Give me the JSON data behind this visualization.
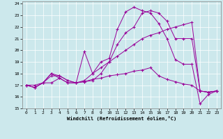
{
  "xlabel": "Windchill (Refroidissement éolien,°C)",
  "bg_color": "#cce8ec",
  "line_color": "#990099",
  "xlim": [
    -0.5,
    23.5
  ],
  "ylim": [
    15,
    24.2
  ],
  "xticks": [
    0,
    1,
    2,
    3,
    4,
    5,
    6,
    7,
    8,
    9,
    10,
    11,
    12,
    13,
    14,
    15,
    16,
    17,
    18,
    19,
    20,
    21,
    22,
    23
  ],
  "yticks": [
    15,
    16,
    17,
    18,
    19,
    20,
    21,
    22,
    23,
    24
  ],
  "s1x": [
    0,
    1,
    2,
    3,
    4,
    5,
    6,
    7,
    8,
    9,
    10,
    11,
    12,
    13,
    14,
    15,
    16,
    17,
    18,
    19,
    20,
    21,
    22,
    23
  ],
  "s1y": [
    17.0,
    16.8,
    17.2,
    17.2,
    17.6,
    17.2,
    17.2,
    17.3,
    17.4,
    18.0,
    19.0,
    20.5,
    21.5,
    22.0,
    23.2,
    23.4,
    23.2,
    22.5,
    21.0,
    21.0,
    21.0,
    16.5,
    16.4,
    16.5
  ],
  "s2x": [
    0,
    1,
    2,
    3,
    4,
    5,
    6,
    7,
    8,
    9,
    10,
    11,
    12,
    13,
    14,
    15,
    16,
    17,
    18,
    19,
    20,
    21,
    22,
    23
  ],
  "s2y": [
    17.0,
    16.8,
    17.2,
    18.0,
    17.6,
    17.2,
    17.2,
    19.9,
    18.0,
    19.0,
    19.3,
    21.8,
    23.3,
    23.7,
    23.4,
    23.2,
    22.3,
    21.0,
    19.2,
    18.8,
    18.8,
    15.4,
    16.2,
    16.5
  ],
  "s3x": [
    0,
    1,
    2,
    3,
    4,
    5,
    6,
    7,
    8,
    9,
    10,
    11,
    12,
    13,
    14,
    15,
    16,
    17,
    18,
    19,
    20,
    21,
    22,
    23
  ],
  "s3y": [
    17.0,
    16.8,
    17.2,
    17.8,
    17.8,
    17.4,
    17.2,
    17.4,
    18.0,
    18.5,
    19.0,
    19.5,
    20.0,
    20.5,
    21.0,
    21.3,
    21.5,
    21.8,
    22.0,
    22.2,
    22.4,
    16.5,
    16.4,
    16.5
  ],
  "s4x": [
    0,
    1,
    2,
    3,
    4,
    5,
    6,
    7,
    8,
    9,
    10,
    11,
    12,
    13,
    14,
    15,
    16,
    17,
    18,
    19,
    20,
    21,
    22,
    23
  ],
  "s4y": [
    17.0,
    17.0,
    17.2,
    18.0,
    17.8,
    17.4,
    17.2,
    17.3,
    17.5,
    17.6,
    17.8,
    17.9,
    18.0,
    18.2,
    18.3,
    18.5,
    17.8,
    17.5,
    17.3,
    17.1,
    17.0,
    16.5,
    16.4,
    16.5
  ]
}
